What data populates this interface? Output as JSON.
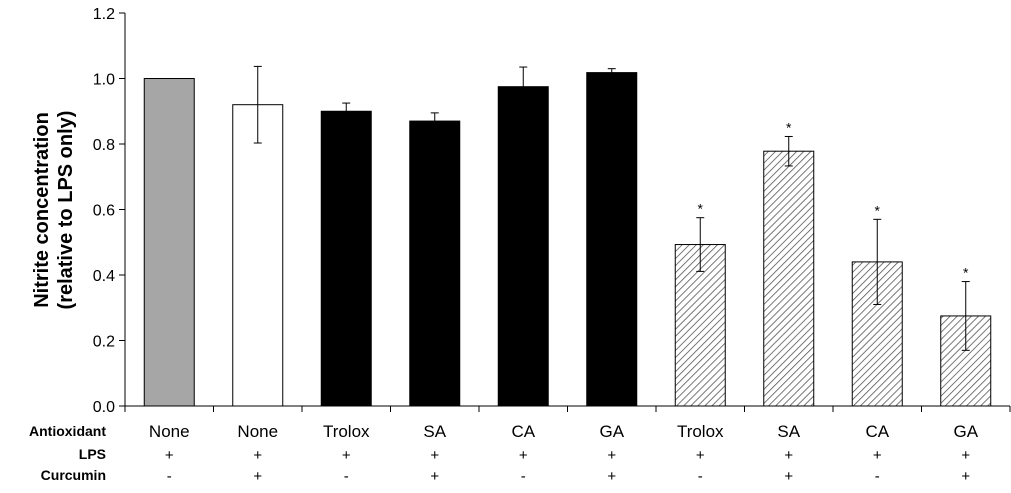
{
  "chart_data": {
    "type": "bar",
    "title": "",
    "ylabel_lines": [
      "Nitrite concentration",
      "(relative to LPS only)"
    ],
    "ylim": [
      0,
      1.2
    ],
    "yticks": [
      "0.0",
      "0.2",
      "0.4",
      "0.6",
      "0.8",
      "1.0",
      "1.2"
    ],
    "grid": false,
    "legend": "none",
    "row_labels": [
      "Antioxidant",
      "LPS",
      "Curcumin"
    ],
    "categories": [
      "None",
      "None",
      "Trolox",
      "SA",
      "CA",
      "GA",
      "Trolox",
      "SA",
      "CA",
      "GA"
    ],
    "lps": [
      "+",
      "+",
      "+",
      "+",
      "+",
      "+",
      "+",
      "+",
      "+",
      "+"
    ],
    "curcumin": [
      "-",
      "+",
      "-",
      "+",
      "-",
      "+",
      "-",
      "+",
      "-",
      "+"
    ],
    "values": [
      1.0,
      0.92,
      0.9,
      0.87,
      0.975,
      1.018,
      0.493,
      0.778,
      0.44,
      0.275
    ],
    "errors": [
      0.0,
      0.117,
      0.025,
      0.025,
      0.06,
      0.012,
      0.082,
      0.045,
      0.13,
      0.105
    ],
    "significance": [
      "",
      "",
      "",
      "",
      "",
      "",
      "*",
      "*",
      "*",
      "*"
    ],
    "fills": [
      "gray",
      "white",
      "black",
      "black",
      "black",
      "black",
      "hatched",
      "hatched",
      "hatched",
      "hatched"
    ],
    "colors": {
      "gray": "#a6a6a6",
      "white": "#ffffff",
      "black": "#000000",
      "hatch": "#555555",
      "axis": "#000000"
    }
  }
}
